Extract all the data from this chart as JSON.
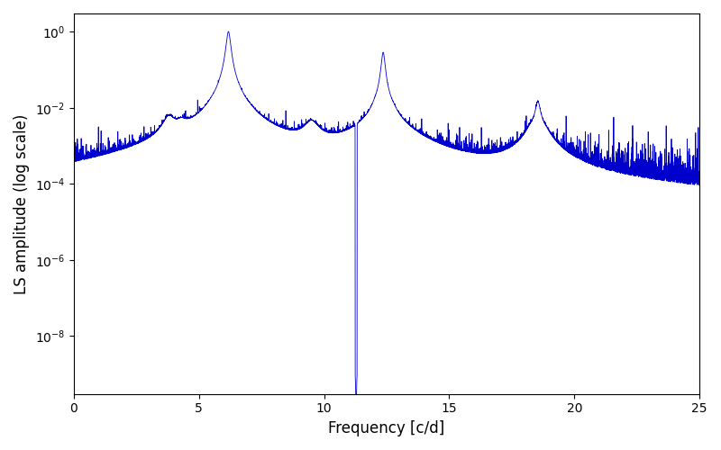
{
  "title": "",
  "xlabel": "Frequency [c/d]",
  "ylabel": "LS amplitude (log scale)",
  "xlim": [
    0,
    25
  ],
  "ylim_log": [
    3e-10,
    3.0
  ],
  "line_color": "#0000cc",
  "line_width": 0.6,
  "yscale": "log",
  "figsize": [
    8.0,
    5.0
  ],
  "dpi": 100,
  "freq_min": 0.0,
  "freq_max": 25.0,
  "n_points": 8000,
  "main_freq": 6.18,
  "main_amp": 1.0,
  "harmonic2_freq": 12.36,
  "harmonic2_amp": 0.28,
  "harmonic3_freq": 18.54,
  "harmonic3_amp": 0.012,
  "noise_floor_log_mean": -4.3,
  "noise_floor_log_std": 0.6,
  "random_seed": 7
}
